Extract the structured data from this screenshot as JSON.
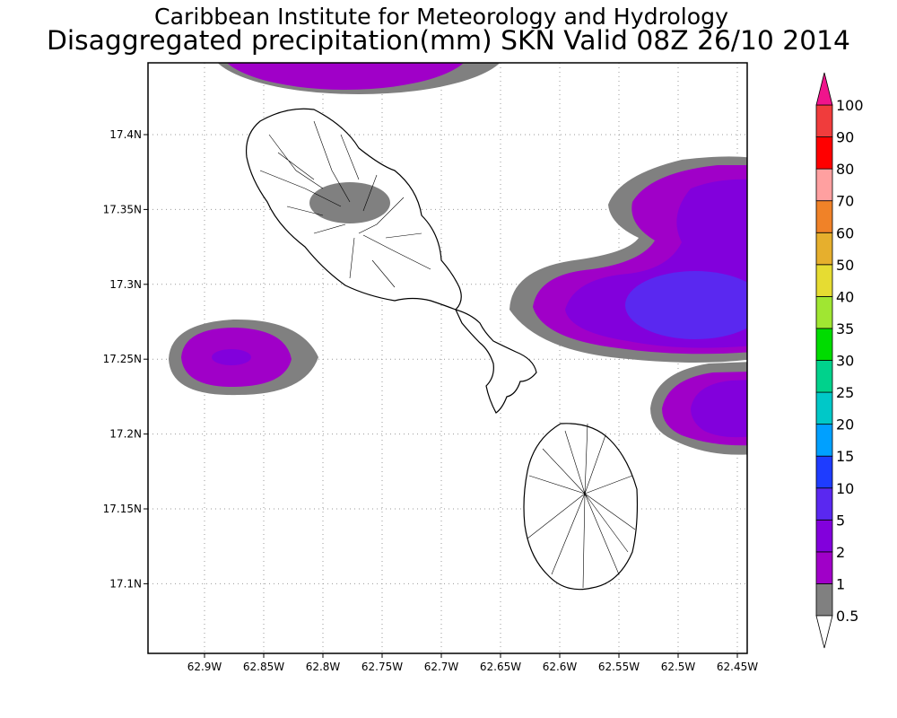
{
  "title": [
    "Caribbean Institute for Meteorology and Hydrology",
    "Disaggregated precipitation(mm) SKN Valid 08Z 26/10 2014"
  ],
  "xticks": [
    "62.9W",
    "62.85W",
    "62.8W",
    "62.75W",
    "62.7W",
    "62.65W",
    "62.6W",
    "62.55W",
    "62.5W",
    "62.45W"
  ],
  "yticks": [
    "17.4N",
    "17.35N",
    "17.3N",
    "17.25N",
    "17.2N",
    "17.15N",
    "17.1N"
  ],
  "colorbar": {
    "levels": [
      "0.5",
      "1",
      "2",
      "5",
      "10",
      "15",
      "20",
      "25",
      "30",
      "35",
      "40",
      "50",
      "60",
      "70",
      "80",
      "90",
      "100"
    ],
    "under_color": "#ffffff",
    "colors": [
      "#808080",
      "#a000c8",
      "#8200dc",
      "#5a28f0",
      "#1e3cff",
      "#00a0ff",
      "#00c8c8",
      "#00d28c",
      "#00dc00",
      "#a0e632",
      "#e6dc32",
      "#e6af2d",
      "#f08228",
      "#ffa0a0",
      "#ff0000",
      "#f03c3c"
    ],
    "over_color": "#f0148c"
  }
}
